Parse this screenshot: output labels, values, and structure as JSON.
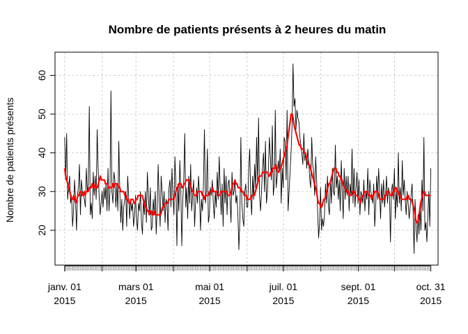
{
  "chart_data": {
    "type": "line",
    "title": "Nombre de patients présents à 2 heures du matin",
    "xlabel": "",
    "ylabel": "Nombre de patients présents",
    "x_start": "2015-01-01",
    "x_end": "2015-10-31",
    "xlim": [
      "2014-12-24",
      "2015-11-06"
    ],
    "ylim": [
      11,
      66
    ],
    "yticks": [
      20,
      30,
      40,
      50,
      60
    ],
    "xticks": [
      {
        "date": "2015-01-01",
        "label_line1": "janv. 01",
        "label_line2": "2015"
      },
      {
        "date": "2015-03-01",
        "label_line1": "mars 01",
        "label_line2": "2015"
      },
      {
        "date": "2015-05-01",
        "label_line1": "mai 01",
        "label_line2": "2015"
      },
      {
        "date": "2015-07-01",
        "label_line1": "juil. 01",
        "label_line2": "2015"
      },
      {
        "date": "2015-09-01",
        "label_line1": "sept. 01",
        "label_line2": "2015"
      },
      {
        "date": "2015-10-31",
        "label_line1": "oct. 31",
        "label_line2": "2015"
      }
    ],
    "grid": true,
    "series": [
      {
        "color": "#000000",
        "values": [
          44,
          33,
          45,
          28,
          31,
          34,
          27,
          29,
          21,
          25,
          33,
          28,
          20,
          29,
          31,
          37,
          24,
          33,
          30,
          29,
          28,
          26,
          36,
          30,
          32,
          52,
          24,
          27,
          23,
          35,
          29,
          34,
          28,
          46,
          36,
          29,
          24,
          27,
          30,
          26,
          31,
          28,
          32,
          25,
          36,
          25,
          30,
          56,
          30,
          27,
          35,
          33,
          26,
          32,
          25,
          43,
          30,
          22,
          28,
          20,
          26,
          28,
          30,
          21,
          34,
          29,
          23,
          28,
          25,
          27,
          21,
          24,
          29,
          23,
          20,
          27,
          25,
          30,
          22,
          19,
          28,
          24,
          30,
          22,
          35,
          29,
          24,
          31,
          20,
          21,
          28,
          24,
          30,
          19,
          26,
          37,
          28,
          21,
          34,
          30,
          25,
          30,
          22,
          28,
          27,
          20,
          31,
          33,
          26,
          36,
          29,
          24,
          39,
          32,
          16,
          32,
          25,
          38,
          30,
          16,
          28,
          33,
          45,
          26,
          31,
          23,
          34,
          27,
          37,
          25,
          29,
          33,
          21,
          27,
          31,
          27,
          34,
          29,
          20,
          28,
          25,
          32,
          46,
          27,
          30,
          41,
          22,
          24,
          31,
          29,
          33,
          27,
          23,
          30,
          26,
          35,
          28,
          39,
          31,
          24,
          32,
          21,
          36,
          27,
          34,
          24,
          32,
          33,
          28,
          22,
          35,
          29,
          30,
          33,
          27,
          29,
          24,
          15,
          23,
          44,
          27,
          23,
          21,
          30,
          32,
          26,
          26,
          36,
          41,
          29,
          24,
          34,
          28,
          37,
          31,
          44,
          32,
          49,
          29,
          25,
          30,
          36,
          40,
          30,
          43,
          27,
          30,
          36,
          44,
          39,
          33,
          47,
          29,
          32,
          51,
          31,
          34,
          38,
          35,
          41,
          27,
          36,
          31,
          44,
          43,
          33,
          51,
          25,
          30,
          35,
          40,
          47,
          63,
          52,
          54,
          46,
          51,
          49,
          48,
          44,
          42,
          40,
          37,
          45,
          38,
          40,
          36,
          41,
          38,
          33,
          31,
          44,
          37,
          35,
          29,
          39,
          33,
          25,
          18,
          22,
          31,
          20,
          23,
          21,
          24,
          32,
          27,
          34,
          26,
          24,
          33,
          27,
          36,
          30,
          29,
          42,
          31,
          34,
          28,
          33,
          25,
          38,
          30,
          23,
          36,
          28,
          34,
          29,
          34,
          25,
          32,
          29,
          41,
          27,
          36,
          26,
          31,
          35,
          27,
          33,
          24,
          30,
          29,
          27,
          33,
          25,
          30,
          28,
          36,
          24,
          33,
          30,
          29,
          27,
          32,
          21,
          26,
          34,
          28,
          36,
          30,
          23,
          32,
          27,
          33,
          26,
          29,
          34,
          27,
          31,
          29,
          17,
          30,
          32,
          28,
          36,
          23,
          30,
          26,
          40,
          27,
          31,
          25,
          38,
          29,
          33,
          28,
          24,
          30,
          27,
          23,
          26,
          29,
          32,
          25,
          14,
          28,
          21,
          17,
          24,
          19,
          26,
          20,
          33,
          25,
          44,
          20,
          22,
          17,
          24,
          30,
          21,
          36
        ]
      },
      {
        "color": "#ff0000",
        "values": [
          36,
          34,
          33,
          32,
          31,
          30,
          29,
          28,
          28,
          29,
          28,
          27,
          28,
          29,
          29,
          30,
          30,
          29,
          29,
          30,
          29,
          30,
          30,
          30,
          31,
          31,
          31,
          32,
          31,
          31,
          32,
          31,
          31,
          32,
          33,
          34,
          33,
          33,
          33,
          33,
          32,
          32,
          32,
          31,
          31,
          31,
          31,
          32,
          31,
          32,
          32,
          32,
          32,
          31,
          31,
          30,
          30,
          30,
          30,
          29,
          29,
          28,
          28,
          27,
          27,
          28,
          28,
          28,
          27,
          27,
          28,
          28,
          29,
          29,
          29,
          29,
          29,
          28,
          27,
          26,
          26,
          25,
          25,
          24,
          25,
          25,
          24,
          24,
          25,
          24,
          24,
          24,
          24,
          24,
          24,
          25,
          26,
          26,
          27,
          27,
          27,
          27,
          28,
          28,
          28,
          28,
          28,
          28,
          29,
          30,
          31,
          31,
          32,
          32,
          32,
          31,
          31,
          32,
          32,
          33,
          33,
          33,
          33,
          32,
          31,
          30,
          30,
          29,
          29,
          29,
          30,
          30,
          30,
          30,
          30,
          29,
          29,
          28,
          29,
          29,
          29,
          29,
          30,
          30,
          30,
          31,
          30,
          30,
          30,
          30,
          29,
          29,
          29,
          30,
          30,
          30,
          30,
          30,
          30,
          30,
          29,
          29,
          29,
          30,
          31,
          32,
          32,
          33,
          32,
          32,
          31,
          31,
          31,
          30,
          30,
          30,
          29,
          29,
          29,
          28,
          28,
          28,
          28,
          29,
          29,
          29,
          29,
          30,
          31,
          32,
          33,
          34,
          34,
          34,
          35,
          35,
          35,
          35,
          35,
          35,
          34,
          34,
          35,
          35,
          36,
          36,
          36,
          37,
          36,
          35,
          35,
          36,
          36,
          37,
          38,
          39,
          40,
          41,
          42,
          44,
          46,
          48,
          50,
          50,
          49,
          47,
          46,
          45,
          44,
          43,
          42,
          42,
          41,
          41,
          41,
          40,
          40,
          39,
          38,
          37,
          37,
          36,
          35,
          34,
          33,
          32,
          31,
          30,
          28,
          27,
          27,
          26,
          26,
          27,
          28,
          28,
          29,
          30,
          31,
          32,
          32,
          33,
          34,
          35,
          36,
          36,
          36,
          35,
          35,
          34,
          34,
          33,
          33,
          32,
          31,
          31,
          30,
          30,
          30,
          29,
          29,
          29,
          30,
          30,
          30,
          29,
          29,
          29,
          28,
          28,
          27,
          28,
          29,
          29,
          30,
          30,
          30,
          30,
          29,
          29,
          29,
          28,
          29,
          29,
          30,
          30,
          30,
          30,
          29,
          28,
          28,
          28,
          28,
          28,
          29,
          29,
          30,
          30,
          30,
          29,
          29,
          29,
          30,
          30,
          31,
          31,
          30,
          30,
          29,
          29,
          28,
          28,
          28,
          28,
          28,
          28,
          29,
          29,
          28,
          28,
          28,
          27,
          26,
          25,
          23,
          22,
          22,
          23,
          25,
          27,
          28,
          29,
          30,
          30,
          29,
          29,
          29,
          29,
          29,
          29
        ]
      }
    ]
  }
}
